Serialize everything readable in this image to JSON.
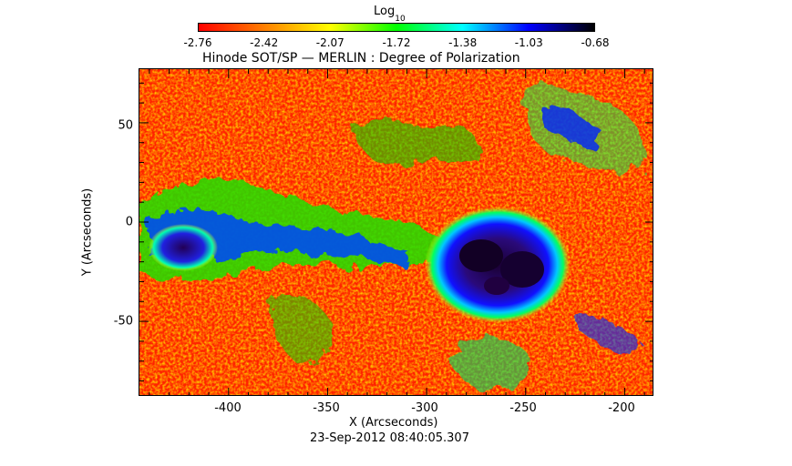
{
  "colorbar": {
    "title": "Log",
    "title_subscript": "10",
    "ticks": [
      "-2.76",
      "-2.42",
      "-2.07",
      "-1.72",
      "-1.38",
      "-1.03",
      "-0.68"
    ],
    "colors": [
      "#ff0000",
      "#ff7f00",
      "#ffff00",
      "#00ff00",
      "#00ffff",
      "#0000ff",
      "#000000"
    ]
  },
  "plot": {
    "title": "Hinode SOT/SP — MERLIN : Degree of Polarization",
    "xlabel": "X (Arcseconds)",
    "ylabel": "Y (Arcseconds)",
    "x_ticks": [
      "-400",
      "-350",
      "-300",
      "-250",
      "-200"
    ],
    "y_ticks": [
      "50",
      "0",
      "-50"
    ],
    "timestamp": "23-Sep-2012 08:40:05.307",
    "xlim": [
      -445,
      -185
    ],
    "ylim": [
      -88,
      77
    ]
  }
}
